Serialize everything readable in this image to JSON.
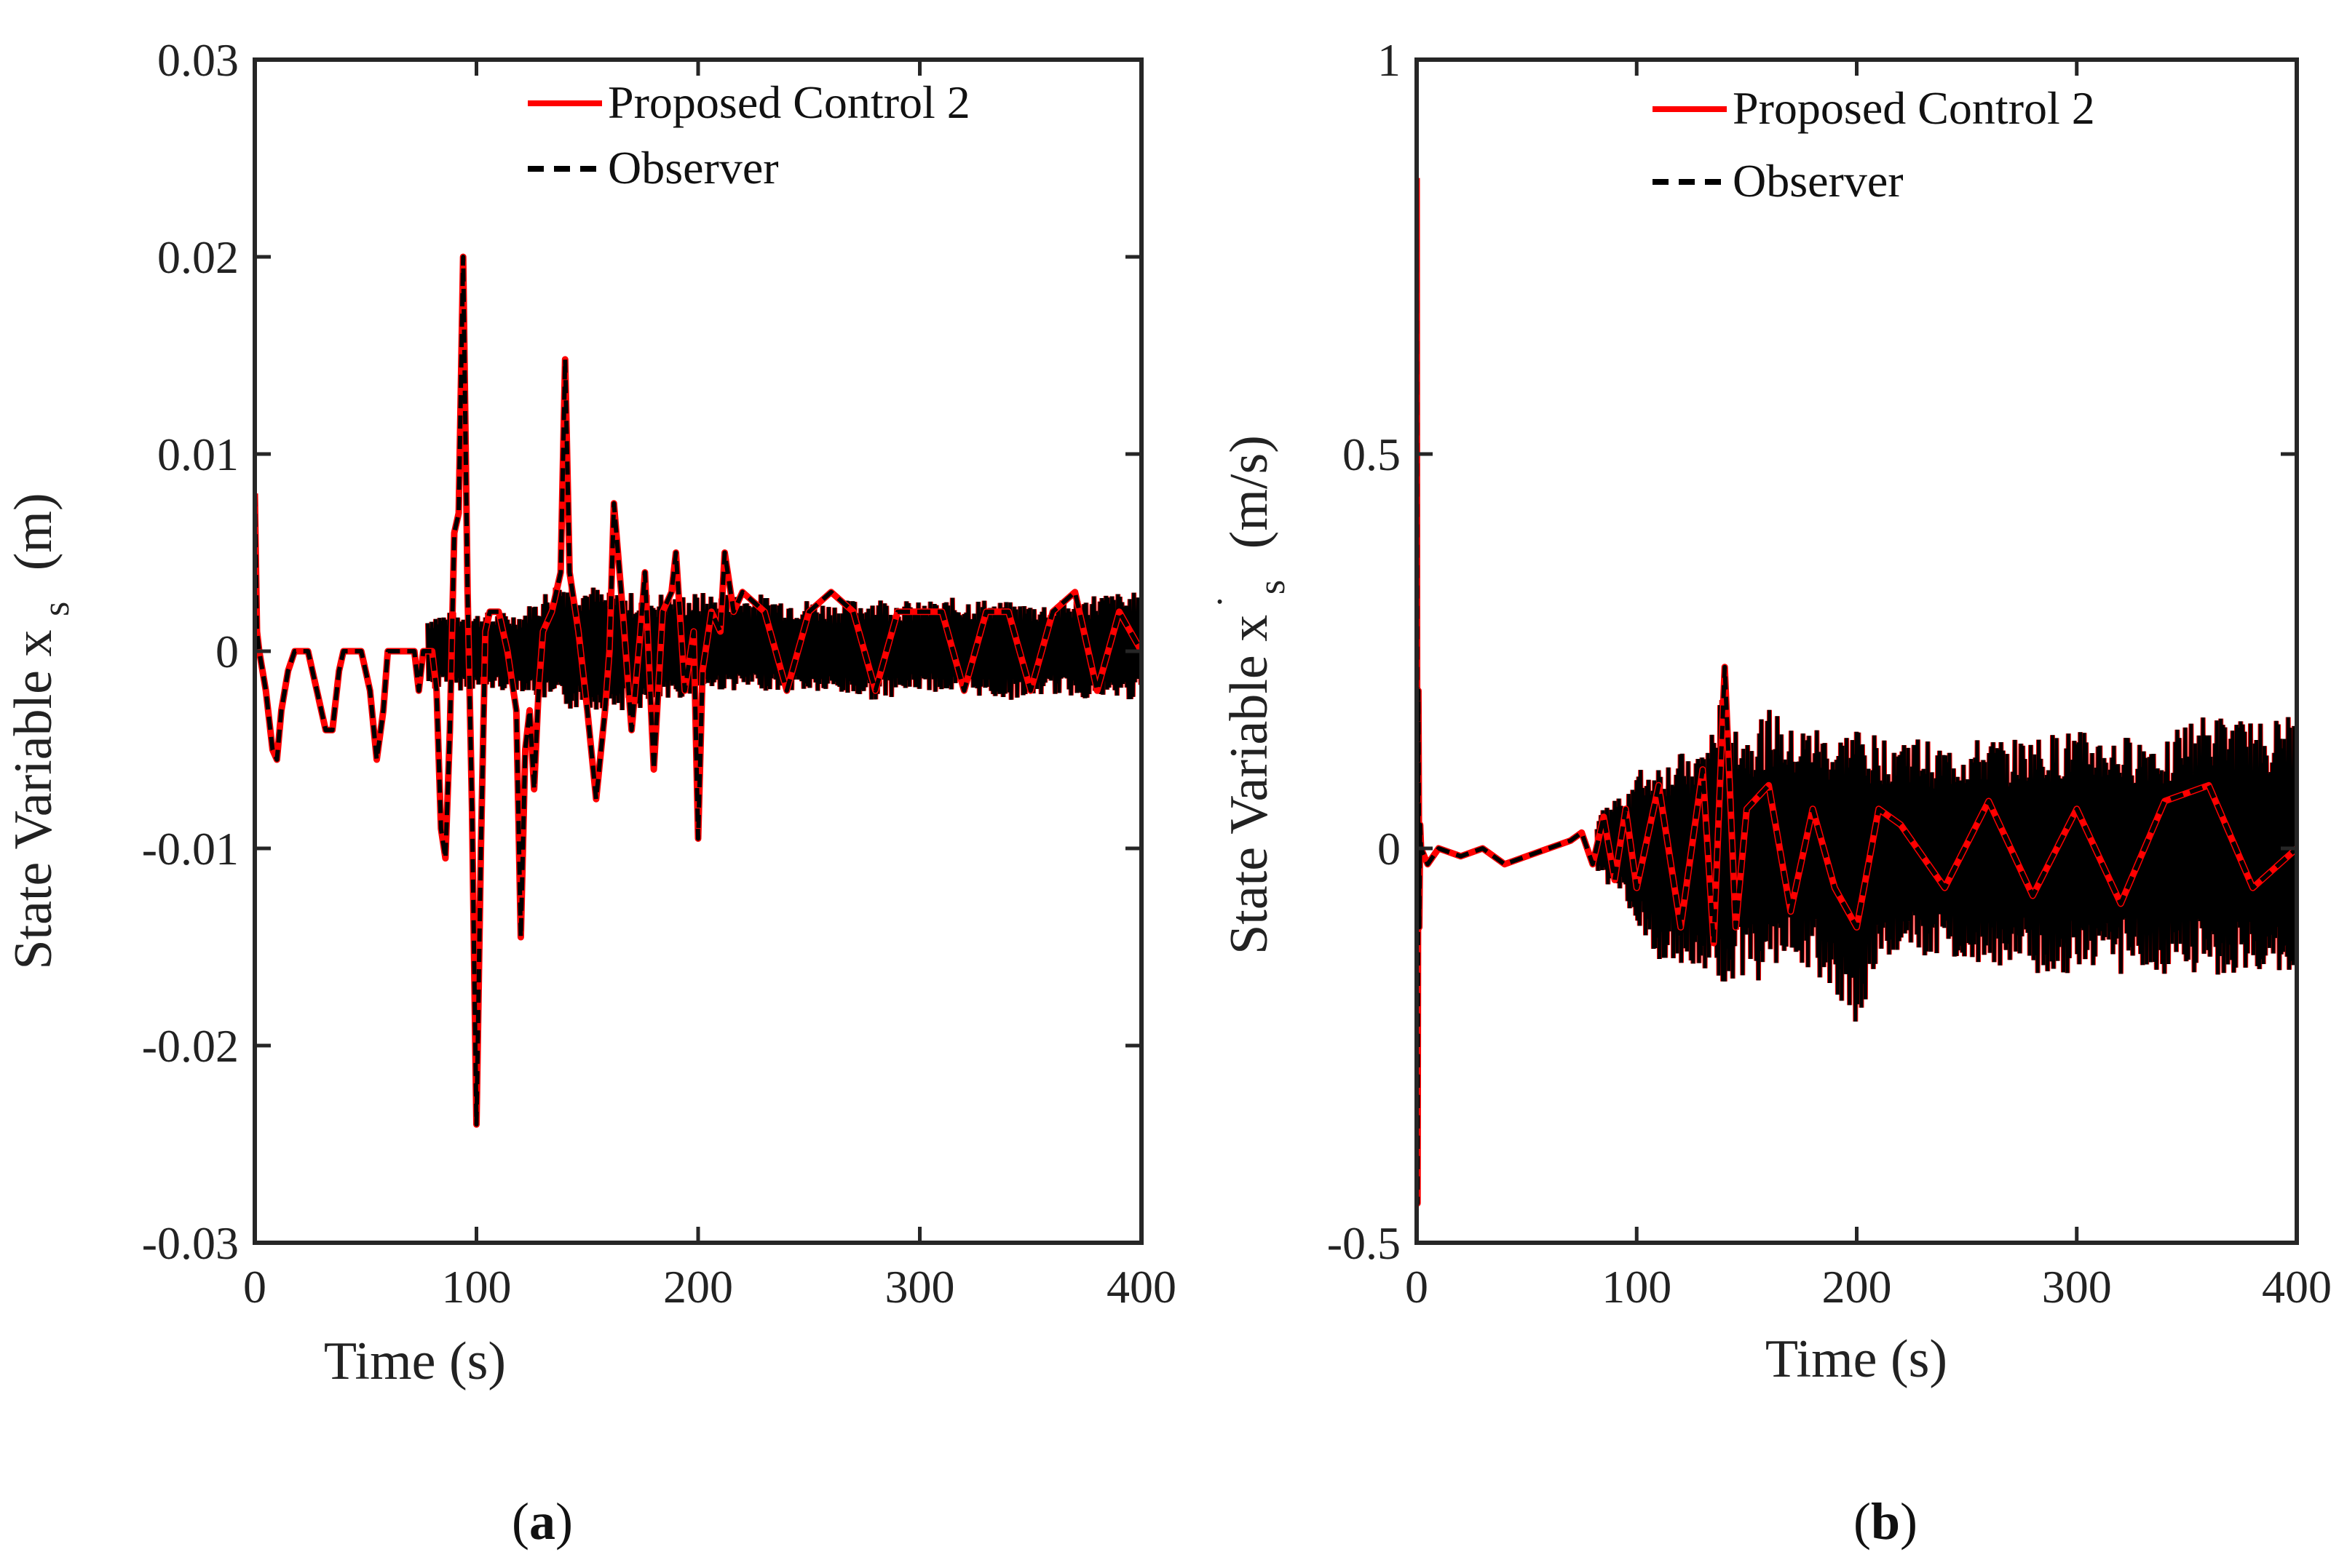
{
  "chart_data": [
    {
      "type": "line",
      "panel_label": "a",
      "title": "",
      "xlabel": "Time (s)",
      "ylabel": "State Variable x",
      "ylabel_sub": "s",
      "ylabel_unit": "(m)",
      "xlim": [
        0,
        400
      ],
      "ylim": [
        -0.03,
        0.03
      ],
      "xticks": [
        0,
        100,
        200,
        300,
        400
      ],
      "xtick_labels": [
        "0",
        "100",
        "200",
        "300",
        "400"
      ],
      "yticks": [
        -0.03,
        -0.02,
        -0.01,
        0,
        0.01,
        0.02,
        0.03
      ],
      "ytick_labels": [
        "-0.03",
        "-0.02",
        "-0.01",
        "0",
        "0.01",
        "0.02",
        "0.03"
      ],
      "grid": false,
      "legend_position": "top-right",
      "series": [
        {
          "name": "Proposed Control 2",
          "color": "#ff0000",
          "style": "solid"
        },
        {
          "name": "Observer",
          "color": "#000000",
          "style": "dashed"
        }
      ],
      "x": [
        0,
        1,
        2,
        5,
        8,
        10,
        12,
        15,
        18,
        20,
        24,
        28,
        32,
        35,
        38,
        40,
        44,
        48,
        52,
        55,
        58,
        60,
        65,
        68,
        72,
        74,
        76,
        80,
        82,
        84,
        86,
        88,
        90,
        92,
        94,
        96,
        98,
        100,
        102,
        104,
        106,
        110,
        114,
        118,
        120,
        122,
        124,
        126,
        128,
        130,
        134,
        138,
        140,
        142,
        146,
        150,
        154,
        158,
        160,
        162,
        166,
        170,
        174,
        176,
        180,
        184,
        188,
        190,
        194,
        198,
        200,
        202,
        206,
        210,
        212,
        216,
        220,
        230,
        240,
        250,
        260,
        270,
        280,
        290,
        300,
        310,
        320,
        330,
        340,
        350,
        360,
        370,
        380,
        390,
        400
      ],
      "values": [
        0.008,
        0.001,
        0.0,
        -0.002,
        -0.005,
        -0.0055,
        -0.003,
        -0.001,
        0.0,
        0.0,
        0.0,
        -0.002,
        -0.004,
        -0.004,
        -0.001,
        0.0,
        0.0,
        0.0,
        -0.002,
        -0.0055,
        -0.003,
        0.0,
        0.0,
        0.0,
        0.0,
        -0.002,
        0.0,
        0.0,
        -0.002,
        -0.009,
        -0.0105,
        -0.004,
        0.006,
        0.007,
        0.02,
        0.003,
        -0.008,
        -0.024,
        -0.01,
        0.001,
        0.002,
        0.002,
        0.0,
        -0.003,
        -0.0145,
        -0.005,
        -0.003,
        -0.007,
        -0.002,
        0.001,
        0.002,
        0.004,
        0.0148,
        0.004,
        0.001,
        -0.003,
        -0.0075,
        -0.003,
        0.0,
        0.0075,
        0.002,
        -0.004,
        0.001,
        0.004,
        -0.006,
        0.002,
        0.003,
        0.005,
        -0.002,
        0.001,
        -0.0095,
        -0.001,
        0.002,
        0.001,
        0.005,
        0.002,
        0.003,
        0.002,
        -0.002,
        0.002,
        0.003,
        0.002,
        -0.002,
        0.002,
        0.002,
        0.002,
        -0.002,
        0.002,
        0.002,
        -0.002,
        0.002,
        0.003,
        -0.002,
        0.002,
        0.0
      ],
      "envelope_x": [
        0,
        60,
        80,
        100,
        120,
        140,
        160,
        180,
        200,
        220,
        240,
        260,
        280,
        300,
        320,
        340,
        360,
        380,
        400
      ],
      "envelope_upper": [
        0.001,
        0.0005,
        0.002,
        0.002,
        0.002,
        0.004,
        0.003,
        0.003,
        0.003,
        0.003,
        0.0028,
        0.0025,
        0.0028,
        0.0025,
        0.0028,
        0.0025,
        0.0025,
        0.003,
        0.003
      ],
      "envelope_lower": [
        -0.001,
        -0.0005,
        -0.002,
        -0.002,
        -0.002,
        -0.003,
        -0.003,
        -0.003,
        -0.002,
        -0.002,
        -0.002,
        -0.0022,
        -0.0025,
        -0.002,
        -0.0022,
        -0.0025,
        -0.0022,
        -0.0025,
        -0.0025
      ]
    },
    {
      "type": "line",
      "panel_label": "b",
      "title": "",
      "xlabel": "Time (s)",
      "ylabel": "State Variable x",
      "ylabel_sub": "s",
      "ylabel_dot": "˙",
      "ylabel_unit": "(m/s)",
      "xlim": [
        0,
        400
      ],
      "ylim": [
        -0.5,
        1
      ],
      "xticks": [
        0,
        100,
        200,
        300,
        400
      ],
      "xtick_labels": [
        "0",
        "100",
        "200",
        "300",
        "400"
      ],
      "yticks": [
        -0.5,
        0,
        0.5,
        1
      ],
      "ytick_labels": [
        "-0.5",
        "0",
        "0.5",
        "1"
      ],
      "grid": false,
      "legend_position": "top-right",
      "series": [
        {
          "name": "Proposed Control 2",
          "color": "#ff0000",
          "style": "solid"
        },
        {
          "name": "Observer",
          "color": "#000000",
          "style": "dashed"
        }
      ],
      "x": [
        0,
        0.4,
        0.8,
        1.2,
        1.6,
        2,
        5,
        10,
        20,
        30,
        40,
        50,
        60,
        70,
        75,
        80,
        85,
        90,
        95,
        100,
        110,
        120,
        130,
        135,
        140,
        145,
        150,
        160,
        170,
        180,
        190,
        200,
        210,
        220,
        240,
        260,
        280,
        300,
        320,
        340,
        360,
        380,
        400
      ],
      "values": [
        0.85,
        -0.45,
        0.2,
        -0.1,
        0.03,
        0.0,
        -0.02,
        0.0,
        -0.01,
        0.0,
        -0.02,
        -0.01,
        0.0,
        0.01,
        0.02,
        -0.02,
        0.04,
        -0.04,
        0.05,
        -0.05,
        0.08,
        -0.1,
        0.1,
        -0.12,
        0.23,
        -0.1,
        0.05,
        0.08,
        -0.08,
        0.05,
        -0.05,
        -0.1,
        0.05,
        0.03,
        -0.05,
        0.06,
        -0.06,
        0.05,
        -0.07,
        0.06,
        0.08,
        -0.05,
        0.0
      ],
      "envelope_x": [
        0,
        20,
        50,
        70,
        85,
        95,
        100,
        110,
        120,
        130,
        140,
        150,
        160,
        170,
        180,
        190,
        200,
        210,
        220,
        240,
        260,
        280,
        300,
        320,
        340,
        360,
        380,
        400
      ],
      "envelope_upper": [
        0.01,
        0.0,
        0.005,
        0.02,
        0.05,
        0.08,
        0.1,
        0.11,
        0.12,
        0.13,
        0.2,
        0.15,
        0.18,
        0.15,
        0.16,
        0.14,
        0.16,
        0.14,
        0.15,
        0.13,
        0.14,
        0.14,
        0.15,
        0.14,
        0.15,
        0.17,
        0.16,
        0.17
      ],
      "envelope_lower": [
        -0.01,
        -0.02,
        -0.02,
        -0.03,
        -0.04,
        -0.07,
        -0.1,
        -0.14,
        -0.15,
        -0.16,
        -0.17,
        -0.18,
        -0.16,
        -0.15,
        -0.16,
        -0.18,
        -0.23,
        -0.15,
        -0.14,
        -0.14,
        -0.15,
        -0.16,
        -0.16,
        -0.16,
        -0.16,
        -0.16,
        -0.17,
        -0.17
      ]
    }
  ]
}
